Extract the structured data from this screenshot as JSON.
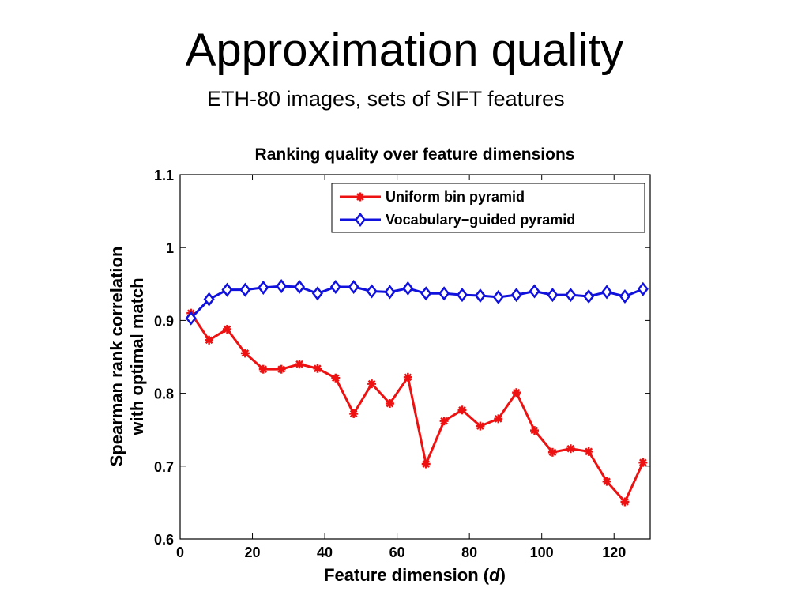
{
  "slide": {
    "title": "Approximation quality",
    "subtitle": "ETH-80 images, sets of SIFT features"
  },
  "chart_data": {
    "type": "line",
    "title": "Ranking quality over feature dimensions",
    "xlabel_text": "Feature dimension (",
    "xlabel_var": "d",
    "xlabel_close": ")",
    "ylabel_line1": "Spearman rank correlation",
    "ylabel_line2": "with optimal match",
    "xlim": [
      0,
      130
    ],
    "ylim": [
      0.6,
      1.1
    ],
    "xticks": [
      0,
      20,
      40,
      60,
      80,
      100,
      120
    ],
    "yticks": [
      0.6,
      0.7,
      0.8,
      0.9,
      1,
      1.1
    ],
    "ytick_labels": [
      "0.6",
      "0.7",
      "0.8",
      "0.9",
      "1",
      "1.1"
    ],
    "grid": false,
    "legend_position": "top-right",
    "x": [
      3,
      8,
      13,
      18,
      23,
      28,
      33,
      38,
      43,
      48,
      53,
      58,
      63,
      68,
      73,
      78,
      83,
      88,
      93,
      98,
      103,
      108,
      113,
      118,
      123,
      128
    ],
    "series": [
      {
        "name": "Uniform bin pyramid",
        "color": "#ee1111",
        "marker": "asterisk",
        "values": [
          0.91,
          0.873,
          0.888,
          0.855,
          0.833,
          0.833,
          0.84,
          0.834,
          0.821,
          0.772,
          0.813,
          0.786,
          0.822,
          0.703,
          0.762,
          0.777,
          0.755,
          0.765,
          0.801,
          0.749,
          0.719,
          0.724,
          0.72,
          0.679,
          0.651,
          0.705
        ]
      },
      {
        "name": "Vocabulary−guided pyramid",
        "color": "#1111dd",
        "marker": "diamond",
        "values": [
          0.903,
          0.929,
          0.942,
          0.942,
          0.945,
          0.947,
          0.946,
          0.937,
          0.946,
          0.946,
          0.94,
          0.939,
          0.944,
          0.937,
          0.937,
          0.935,
          0.934,
          0.932,
          0.935,
          0.94,
          0.935,
          0.935,
          0.933,
          0.939,
          0.933,
          0.943
        ]
      }
    ]
  }
}
